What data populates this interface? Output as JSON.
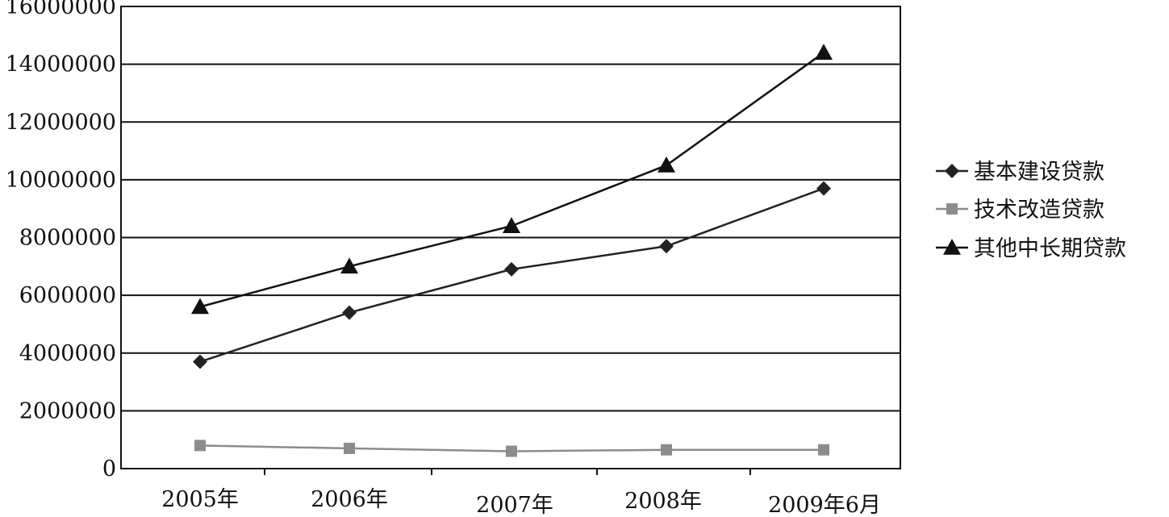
{
  "chart_data": {
    "type": "line",
    "categories": [
      "2005年",
      "2006年",
      "2007年",
      "2008年",
      "2009年6月"
    ],
    "y_ticks": [
      "0",
      "2000000",
      "4000000",
      "6000000",
      "8000000",
      "10000000",
      "12000000",
      "14000000",
      "16000000"
    ],
    "ylim": [
      0,
      16000000
    ],
    "grid": true,
    "legend_position": "right",
    "series": [
      {
        "name": "基本建设贷款",
        "marker": "diamond",
        "color": "#222222",
        "values": [
          3700000,
          5400000,
          6900000,
          7700000,
          9700000
        ]
      },
      {
        "name": "技术改造贷款",
        "marker": "square",
        "color": "#8c8c8c",
        "values": [
          800000,
          700000,
          600000,
          650000,
          650000
        ]
      },
      {
        "name": "其他中长期贷款",
        "marker": "triangle",
        "color": "#111111",
        "values": [
          5600000,
          7000000,
          8400000,
          10500000,
          14400000
        ]
      }
    ]
  }
}
